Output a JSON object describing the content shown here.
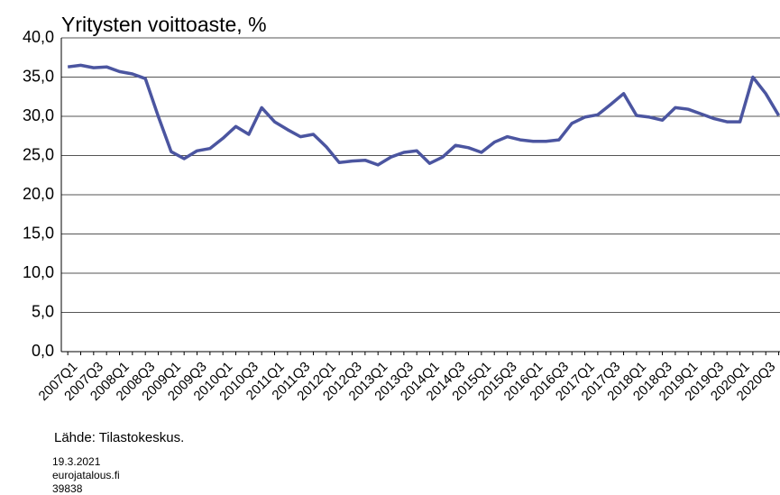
{
  "chart_data": {
    "type": "line",
    "title": "Yritysten voittoaste, %",
    "categories": [
      "2007Q1",
      null,
      "2007Q3",
      null,
      "2008Q1",
      null,
      "2008Q3",
      null,
      "2009Q1",
      null,
      "2009Q3",
      null,
      "2010Q1",
      null,
      "2010Q3",
      null,
      "2011Q1",
      null,
      "2011Q3",
      null,
      "2012Q1",
      null,
      "2012Q3",
      null,
      "2013Q1",
      null,
      "2013Q3",
      null,
      "2014Q1",
      null,
      "2014Q3",
      null,
      "2015Q1",
      null,
      "2015Q3",
      null,
      "2016Q1",
      null,
      "2016Q3",
      null,
      "2017Q1",
      null,
      "2017Q3",
      null,
      "2018Q1",
      null,
      "2018Q3",
      null,
      "2019Q1",
      null,
      "2019Q3",
      null,
      "2020Q1",
      null,
      "2020Q3",
      null
    ],
    "values": [
      36.3,
      36.5,
      36.2,
      36.3,
      35.7,
      35.4,
      34.8,
      30.0,
      25.5,
      24.6,
      25.6,
      25.9,
      27.2,
      28.7,
      27.7,
      31.1,
      29.3,
      28.3,
      27.4,
      27.7,
      26.1,
      24.1,
      24.3,
      24.4,
      23.8,
      24.8,
      25.4,
      25.6,
      24.0,
      24.8,
      26.3,
      26.0,
      25.4,
      26.7,
      27.4,
      27.0,
      26.8,
      26.8,
      27.0,
      29.1,
      29.9,
      30.2,
      31.5,
      32.9,
      30.1,
      29.9,
      29.5,
      31.1,
      30.9,
      30.3,
      29.7,
      29.3,
      29.3,
      35.0,
      32.9,
      30.1
    ],
    "color": "#4b55a0",
    "ylim": [
      0,
      40
    ],
    "yticks": [
      {
        "value": 0,
        "label": "0,0"
      },
      {
        "value": 5,
        "label": "5,0"
      },
      {
        "value": 10,
        "label": "10,0"
      },
      {
        "value": 15,
        "label": "15,0"
      },
      {
        "value": 20,
        "label": "20,0"
      },
      {
        "value": 25,
        "label": "25,0"
      },
      {
        "value": 30,
        "label": "30,0"
      },
      {
        "value": 35,
        "label": "35,0"
      },
      {
        "value": 40,
        "label": "40,0"
      }
    ],
    "grid": true,
    "source": "Lähde: Tilastokeskus.",
    "date": "19.3.2021",
    "site": "eurojatalous.fi",
    "id": "39838"
  }
}
